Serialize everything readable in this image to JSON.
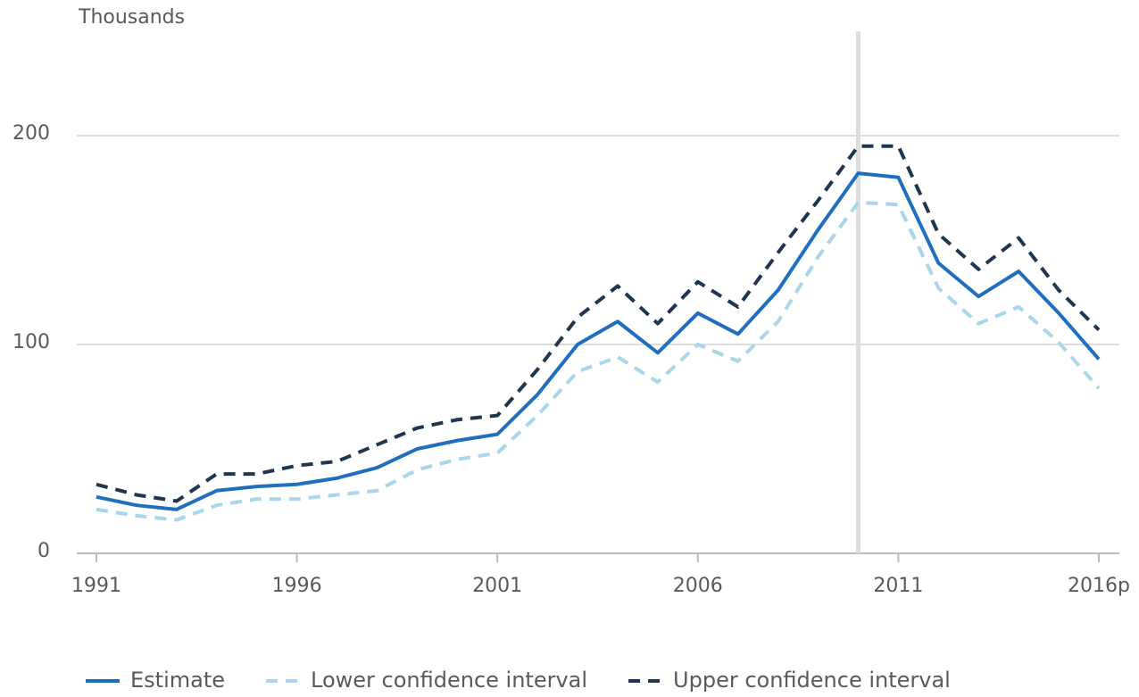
{
  "chart_data": {
    "type": "line",
    "ylabel": "Thousands",
    "x": [
      1991,
      1992,
      1993,
      1994,
      1995,
      1996,
      1997,
      1998,
      1999,
      2000,
      2001,
      2002,
      2003,
      2004,
      2005,
      2006,
      2007,
      2008,
      2009,
      2010,
      2011,
      2012,
      2013,
      2014,
      2015,
      2016
    ],
    "xlim": [
      1991,
      2016
    ],
    "xticks": [
      1991,
      1996,
      2001,
      2006,
      2011,
      {
        "value": 2016,
        "label": "2016p"
      }
    ],
    "ylim": [
      0,
      250
    ],
    "yticks": [
      0,
      100,
      200
    ],
    "grid": true,
    "highlight_x": 2010,
    "legend": "bottom",
    "series": [
      {
        "name": "Estimate",
        "color": "#206fbe",
        "dash": false,
        "values": [
          27,
          23,
          21,
          30,
          32,
          33,
          36,
          41,
          50,
          54,
          57,
          76,
          100,
          111,
          96,
          115,
          105,
          126,
          155,
          182,
          180,
          139,
          123,
          135,
          115,
          93
        ]
      },
      {
        "name": "Lower confidence interval",
        "color": "#a9d6e8",
        "dash": true,
        "values": [
          21,
          18,
          16,
          23,
          26,
          26,
          28,
          30,
          40,
          45,
          48,
          66,
          87,
          94,
          82,
          100,
          92,
          111,
          142,
          168,
          167,
          127,
          110,
          118,
          101,
          79
        ]
      },
      {
        "name": "Upper confidence interval",
        "color": "#1f3550",
        "dash": true,
        "values": [
          33,
          28,
          25,
          38,
          38,
          42,
          44,
          52,
          60,
          64,
          66,
          88,
          113,
          128,
          110,
          130,
          118,
          144,
          169,
          195,
          195,
          153,
          136,
          151,
          126,
          107
        ]
      }
    ]
  }
}
